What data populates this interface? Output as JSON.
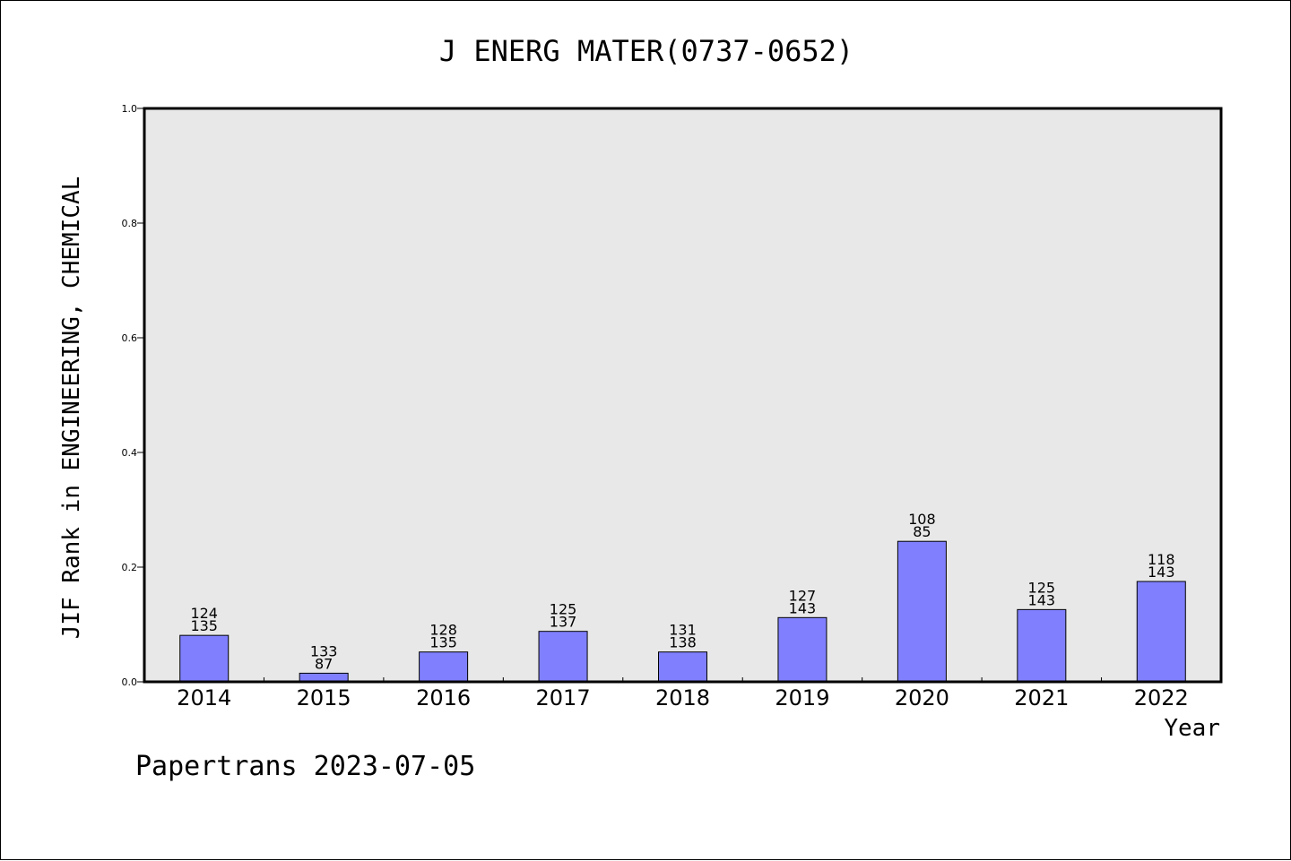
{
  "chart_data": {
    "type": "bar",
    "title": "J ENERG MATER(0737-0652)",
    "xlabel": "Year",
    "ylabel": "JIF Rank in ENGINEERING, CHEMICAL",
    "ylim": [
      0,
      1.0
    ],
    "yticks": [
      "0.0",
      "0.2",
      "0.4",
      "0.6",
      "0.8",
      "1.0"
    ],
    "categories": [
      "2014",
      "2015",
      "2016",
      "2017",
      "2018",
      "2019",
      "2020",
      "2021",
      "2022"
    ],
    "values": [
      0.081,
      0.015,
      0.052,
      0.088,
      0.052,
      0.112,
      0.245,
      0.126,
      0.175
    ],
    "labels_top": [
      "124",
      "133",
      "128",
      "125",
      "131",
      "127",
      "108",
      "125",
      "118"
    ],
    "labels_bottom": [
      "135",
      "87",
      "135",
      "137",
      "138",
      "143",
      "85",
      "143",
      "143"
    ],
    "grid": false,
    "colors": {
      "bar": "#8080ff",
      "plot_bg": "#e8e8e8",
      "bar_edge": "#000000"
    }
  },
  "footer": "Papertrans 2023-07-05"
}
